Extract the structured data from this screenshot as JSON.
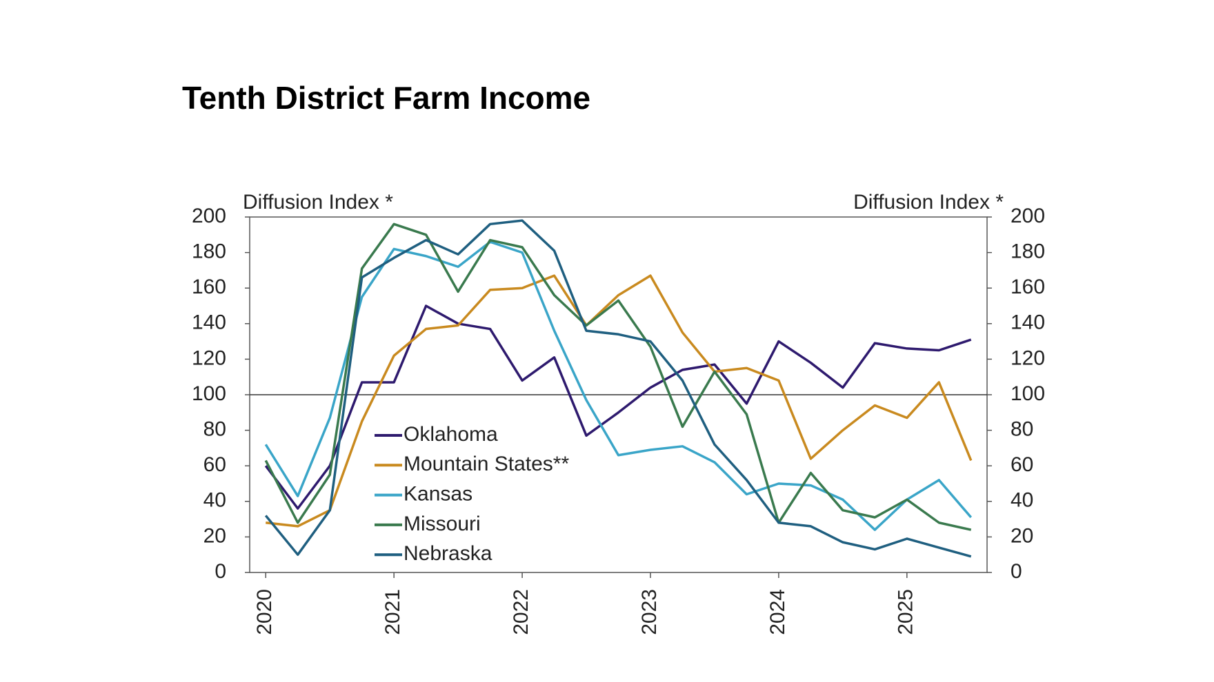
{
  "chart_data": {
    "type": "line",
    "title": "Tenth District Farm Income",
    "ylabel": "Diffusion Index *",
    "y2label": "Diffusion Index *",
    "x": [
      2020,
      2020.25,
      2020.5,
      2020.75,
      2021,
      2021.25,
      2021.5,
      2021.75,
      2022,
      2022.25,
      2022.5,
      2022.75,
      2023,
      2023.25,
      2023.5,
      2023.75,
      2024,
      2024.25,
      2024.5,
      2024.75,
      2025,
      2025.25,
      2025.5
    ],
    "xlim": [
      2019.875,
      2025.625
    ],
    "xticks": [
      2020,
      2021,
      2022,
      2023,
      2024,
      2025
    ],
    "ylim": [
      0,
      200
    ],
    "yticks": [
      0,
      20,
      40,
      60,
      80,
      100,
      120,
      140,
      160,
      180,
      200
    ],
    "y2lim": [
      0,
      200
    ],
    "y2ticks": [
      0,
      20,
      40,
      60,
      80,
      100,
      120,
      140,
      160,
      180,
      200
    ],
    "hline": 100,
    "grid": false,
    "series": [
      {
        "name": "Oklahoma",
        "color": "#2e1a6e",
        "values": [
          60,
          36,
          60,
          107,
          107,
          150,
          140,
          137,
          108,
          121,
          77,
          90,
          104,
          114,
          117,
          95,
          130,
          118,
          104,
          129,
          126,
          125,
          131
        ]
      },
      {
        "name": "Mountain States**",
        "color": "#c98a1f",
        "values": [
          28,
          26,
          35,
          85,
          122,
          137,
          139,
          159,
          160,
          167,
          139,
          156,
          167,
          135,
          113,
          115,
          108,
          64,
          80,
          94,
          87,
          107,
          63
        ]
      },
      {
        "name": "Kansas",
        "color": "#3aa5c8",
        "values": [
          72,
          43,
          87,
          155,
          182,
          178,
          172,
          186,
          180,
          136,
          97,
          66,
          69,
          71,
          62,
          44,
          50,
          49,
          41,
          24,
          41,
          52,
          31
        ]
      },
      {
        "name": "Missouri",
        "color": "#3a7a4e",
        "values": [
          63,
          28,
          55,
          171,
          196,
          190,
          158,
          187,
          183,
          156,
          139,
          153,
          127,
          82,
          113,
          89,
          28,
          56,
          35,
          31,
          41,
          28,
          24
        ]
      },
      {
        "name": "Nebraska",
        "color": "#1f5f80",
        "values": [
          32,
          10,
          35,
          166,
          177,
          187,
          179,
          196,
          198,
          181,
          136,
          134,
          130,
          108,
          72,
          52,
          28,
          26,
          17,
          13,
          19,
          14,
          9
        ]
      }
    ]
  }
}
